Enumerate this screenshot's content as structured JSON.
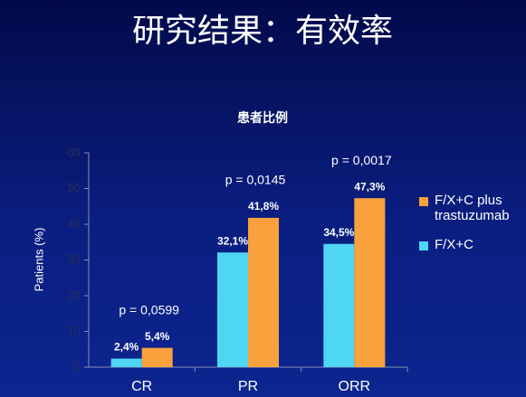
{
  "chart_data": {
    "type": "bar",
    "title": "研究结果：有效率",
    "subtitle": "患者比例",
    "y_label": "Patients (%)",
    "categories": [
      "CR",
      "PR",
      "ORR"
    ],
    "series": [
      {
        "name": "F/X+C",
        "color": "#4fd6f5",
        "values": [
          2.4,
          32.1,
          34.5
        ],
        "value_labels": [
          "2,4%",
          "32,1%",
          "34,5%"
        ]
      },
      {
        "name": "F/X+C plus trastuzumab",
        "color": "#f9a13d",
        "values": [
          5.4,
          41.8,
          47.3
        ],
        "value_labels": [
          "5,4%",
          "41,8%",
          "47,3%"
        ]
      }
    ],
    "annotations": [
      "p = 0,0599",
      "p = 0,0145",
      "p = 0,0017"
    ],
    "ylim": [
      0,
      60
    ],
    "yticks": [
      0,
      10,
      20,
      30,
      40,
      50,
      60
    ],
    "legend": "right"
  }
}
